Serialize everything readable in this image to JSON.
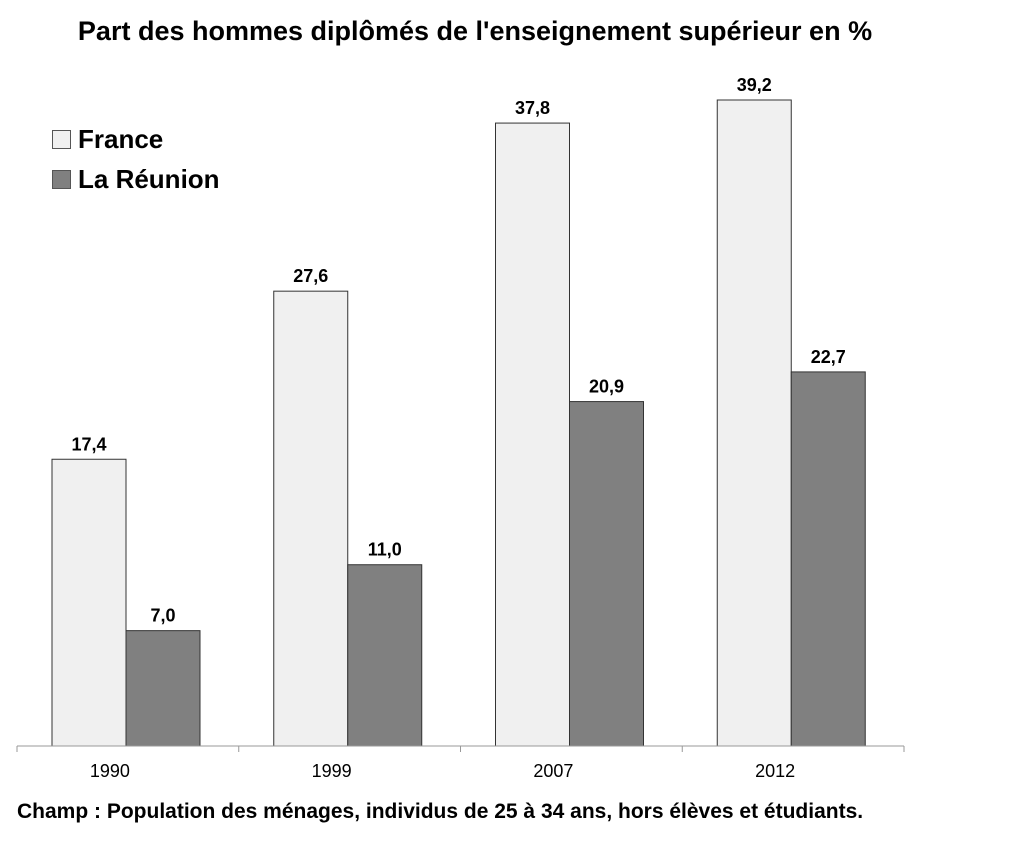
{
  "chart_data": {
    "type": "bar",
    "title": "Part des hommes diplômés de l'enseignement supérieur en %",
    "categories": [
      "1990",
      "1999",
      "2007",
      "2012"
    ],
    "series": [
      {
        "name": "France",
        "values": [
          17.4,
          27.6,
          37.8,
          39.2
        ],
        "labels": [
          "17,4",
          "27,6",
          "37,8",
          "39,2"
        ],
        "color": "#f0f0f0"
      },
      {
        "name": "La Réunion",
        "values": [
          7.0,
          11.0,
          20.9,
          22.7
        ],
        "labels": [
          "7,0",
          "11,0",
          "20,9",
          "22,7"
        ],
        "color": "#808080"
      }
    ],
    "ylim": [
      0,
      40
    ],
    "grid": false,
    "legend": "top-left",
    "footnote": "Champ : Population des ménages, individus de 25 à 34 ans, hors élèves et étudiants."
  }
}
